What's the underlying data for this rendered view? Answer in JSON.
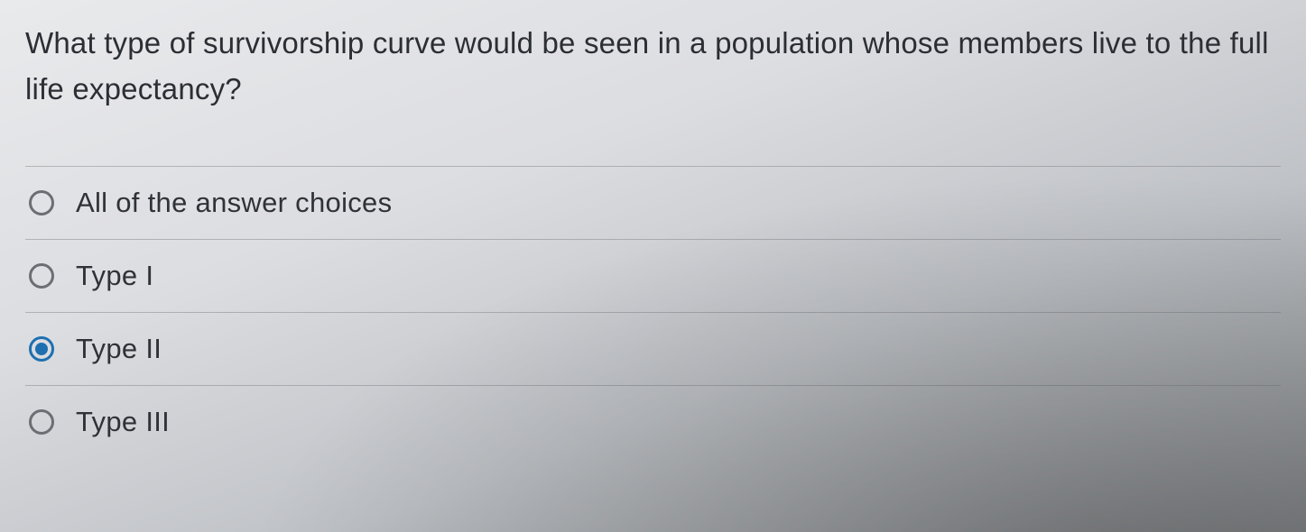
{
  "question": {
    "text": "What type of survivorship curve would be seen in a population whose members live to the full life expectancy?"
  },
  "answers": [
    {
      "label": "All of the answer choices",
      "selected": false
    },
    {
      "label": "Type I",
      "selected": false
    },
    {
      "label": "Type II",
      "selected": true
    },
    {
      "label": "Type III",
      "selected": false
    }
  ],
  "colors": {
    "accent": "#1e6fb0",
    "text": "#2d3034",
    "divider": "#8a8c90"
  }
}
